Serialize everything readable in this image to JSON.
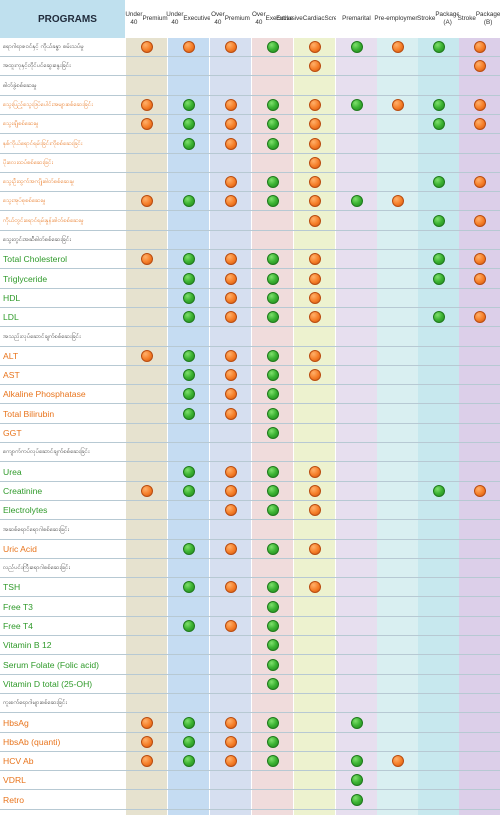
{
  "header": {
    "title": "PROGRAMS",
    "columns": [
      {
        "line1": "Under 40",
        "line2": "Premium"
      },
      {
        "line1": "Under 40",
        "line2": "Executive"
      },
      {
        "line1": "Over 40",
        "line2": "Premium"
      },
      {
        "line1": "Over 40",
        "line2": "Executive"
      },
      {
        "line1": "Exclusive",
        "line2": "Cardiac",
        "line3": "Screening"
      },
      {
        "line1": "Premarital",
        "line2": ""
      },
      {
        "line1": "Pre-",
        "line2": "employment"
      },
      {
        "line1": "Stroke",
        "line2": "Package (A)"
      },
      {
        "line1": "Stroke",
        "line2": "Package (B)"
      }
    ]
  },
  "colors": {
    "green": "#3bb232",
    "orange": "#f57d27",
    "label_green": "#2f9a2a",
    "label_orange": "#e8741c",
    "label_dark": "#333333",
    "column_tints": [
      "#e6e2cf",
      "#c5dcf2",
      "#d6dff0",
      "#f0dcdc",
      "#edf2cf",
      "#e7dfef",
      "#d9eff1",
      "#c7e8ee",
      "#dccfe9"
    ]
  },
  "rows": [
    {
      "label": "ရောဂါရာဇဝင်နှင့် ကိုယ်ခန္ဓာ စမ်းသပ်မှု",
      "script": "my",
      "color": "dark",
      "marks": [
        "o",
        "o",
        "o",
        "g",
        "o",
        "g",
        "o",
        "g",
        "o"
      ]
    },
    {
      "label": "အထူးကုနှင့်တိုင်ပင်ဆွေးနွေးခြင်း",
      "script": "my",
      "color": "dark",
      "marks": [
        "",
        "",
        "",
        "",
        "o",
        "",
        "",
        "",
        "o"
      ]
    },
    {
      "label": "ဓါတ်ခွဲစစ်ဆေးမှု",
      "script": "my",
      "color": "dark",
      "marks": [
        "",
        "",
        "",
        "",
        "",
        "",
        "",
        "",
        ""
      ]
    },
    {
      "label": "သွေးပြည့်သွေးဒြပ်ပေါင်းအများစစ်ဆေးခြင်း",
      "script": "my",
      "color": "orange",
      "marks": [
        "o",
        "g",
        "o",
        "g",
        "o",
        "g",
        "o",
        "g",
        "o"
      ]
    },
    {
      "label": "သွေးချိုစစ်ဆေးမှု",
      "script": "my",
      "color": "orange",
      "marks": [
        "o",
        "g",
        "o",
        "g",
        "o",
        "",
        "",
        "g",
        "o"
      ]
    },
    {
      "label": "နှစ်ကိုယ်ရောင်ရမ်းခြင်းကိုစစ်ဆေးခြင်း",
      "script": "my",
      "color": "orange",
      "marks": [
        "",
        "g",
        "o",
        "g",
        "o",
        "",
        "",
        "",
        ""
      ]
    },
    {
      "label": "ပိုးလေးထပ်စစ်ဆေးခြင်း",
      "script": "my",
      "color": "orange",
      "marks": [
        "",
        "",
        "",
        "",
        "o",
        "",
        "",
        "",
        ""
      ]
    },
    {
      "label": "သွေးဦးထွက်အကျိုးဓါတ်စစ်ဆေးမှု",
      "script": "my",
      "color": "orange",
      "marks": [
        "",
        "",
        "o",
        "g",
        "o",
        "",
        "",
        "g",
        "o"
      ]
    },
    {
      "label": "သွေးအုပ်စုစစ်ဆေးမှု",
      "script": "my",
      "color": "orange",
      "marks": [
        "o",
        "g",
        "o",
        "g",
        "o",
        "g",
        "o",
        "",
        ""
      ]
    },
    {
      "label": "ကိုယ်တွင်းရောင်ရမ်းနှုန်းဓါတ်စစ်ဆေးမှု",
      "script": "my",
      "color": "orange",
      "marks": [
        "",
        "",
        "",
        "",
        "o",
        "",
        "",
        "g",
        "o"
      ]
    },
    {
      "label": "သွေးတွင်းအဆီဓါတ်စစ်ဆေးခြင်း",
      "script": "my",
      "color": "dark",
      "marks": [
        "",
        "",
        "",
        "",
        "",
        "",
        "",
        "",
        ""
      ]
    },
    {
      "label": "Total Cholesterol",
      "script": "latin",
      "color": "green",
      "marks": [
        "o",
        "g",
        "o",
        "g",
        "o",
        "",
        "",
        "g",
        "o"
      ]
    },
    {
      "label": "Triglyceride",
      "script": "latin",
      "color": "green",
      "marks": [
        "",
        "g",
        "o",
        "g",
        "o",
        "",
        "",
        "g",
        "o"
      ]
    },
    {
      "label": "HDL",
      "script": "latin",
      "color": "green",
      "marks": [
        "",
        "g",
        "o",
        "g",
        "o",
        "",
        "",
        "",
        ""
      ]
    },
    {
      "label": "LDL",
      "script": "latin",
      "color": "green",
      "marks": [
        "",
        "g",
        "o",
        "g",
        "o",
        "",
        "",
        "g",
        "o"
      ]
    },
    {
      "label": "အသည်းလုပ်ဆောင်ချက်စစ်ဆေးခြင်း",
      "script": "my",
      "color": "dark",
      "marks": [
        "",
        "",
        "",
        "",
        "",
        "",
        "",
        "",
        ""
      ]
    },
    {
      "label": "ALT",
      "script": "latin",
      "color": "orange",
      "marks": [
        "o",
        "g",
        "o",
        "g",
        "o",
        "",
        "",
        "",
        ""
      ]
    },
    {
      "label": "AST",
      "script": "latin",
      "color": "orange",
      "marks": [
        "",
        "g",
        "o",
        "g",
        "o",
        "",
        "",
        "",
        ""
      ]
    },
    {
      "label": "Alkaline Phosphatase",
      "script": "latin",
      "color": "orange",
      "marks": [
        "",
        "g",
        "o",
        "g",
        "",
        "",
        "",
        "",
        ""
      ]
    },
    {
      "label": "Total Bilirubin",
      "script": "latin",
      "color": "orange",
      "marks": [
        "",
        "g",
        "o",
        "g",
        "",
        "",
        "",
        "",
        ""
      ]
    },
    {
      "label": "GGT",
      "script": "latin",
      "color": "orange",
      "marks": [
        "",
        "",
        "",
        "g",
        "",
        "",
        "",
        "",
        ""
      ]
    },
    {
      "label": "ကျောက်ကပ်လုပ်ဆောင်ချက်စစ်ဆေးခြင်း",
      "script": "my",
      "color": "dark",
      "marks": [
        "",
        "",
        "",
        "",
        "",
        "",
        "",
        "",
        ""
      ]
    },
    {
      "label": "Urea",
      "script": "latin",
      "color": "green",
      "marks": [
        "",
        "g",
        "o",
        "g",
        "o",
        "",
        "",
        "",
        ""
      ]
    },
    {
      "label": "Creatinine",
      "script": "latin",
      "color": "green",
      "marks": [
        "o",
        "g",
        "o",
        "g",
        "o",
        "",
        "",
        "g",
        "o"
      ]
    },
    {
      "label": "Electrolytes",
      "script": "latin",
      "color": "green",
      "marks": [
        "",
        "",
        "o",
        "g",
        "o",
        "",
        "",
        "",
        ""
      ]
    },
    {
      "label": "အဆစ်ရောင်ရောဂါစစ်ဆေးခြင်း",
      "script": "my",
      "color": "dark",
      "marks": [
        "",
        "",
        "",
        "",
        "",
        "",
        "",
        "",
        ""
      ]
    },
    {
      "label": "Uric Acid",
      "script": "latin",
      "color": "orange",
      "marks": [
        "",
        "g",
        "o",
        "g",
        "o",
        "",
        "",
        "",
        ""
      ]
    },
    {
      "label": "လည်ပင်းကြီးရောဂါစစ်ဆေးခြင်း",
      "script": "my",
      "color": "dark",
      "marks": [
        "",
        "",
        "",
        "",
        "",
        "",
        "",
        "",
        ""
      ]
    },
    {
      "label": "TSH",
      "script": "latin",
      "color": "green",
      "marks": [
        "",
        "g",
        "o",
        "g",
        "o",
        "",
        "",
        "",
        ""
      ]
    },
    {
      "label": "Free T3",
      "script": "latin",
      "color": "green",
      "marks": [
        "",
        "",
        "",
        "g",
        "",
        "",
        "",
        "",
        ""
      ]
    },
    {
      "label": "Free T4",
      "script": "latin",
      "color": "green",
      "marks": [
        "",
        "g",
        "o",
        "g",
        "",
        "",
        "",
        "",
        ""
      ]
    },
    {
      "label": "Vitamin B 12",
      "script": "latin",
      "color": "green",
      "marks": [
        "",
        "",
        "",
        "g",
        "",
        "",
        "",
        "",
        ""
      ]
    },
    {
      "label": "Serum Folate (Folic acid)",
      "script": "latin",
      "color": "green",
      "marks": [
        "",
        "",
        "",
        "g",
        "",
        "",
        "",
        "",
        ""
      ]
    },
    {
      "label": "Vitamin D total (25-OH)",
      "script": "latin",
      "color": "green",
      "marks": [
        "",
        "",
        "",
        "g",
        "",
        "",
        "",
        "",
        ""
      ]
    },
    {
      "label": "ကူးစက်ရောဂါများစစ်ဆေးခြင်း",
      "script": "my",
      "color": "dark",
      "marks": [
        "",
        "",
        "",
        "",
        "",
        "",
        "",
        "",
        ""
      ]
    },
    {
      "label": "HbsAg",
      "script": "latin",
      "color": "orange",
      "marks": [
        "o",
        "g",
        "o",
        "g",
        "",
        "g",
        "",
        "",
        ""
      ]
    },
    {
      "label": "HbsAb (quanti)",
      "script": "latin",
      "color": "orange",
      "marks": [
        "o",
        "g",
        "o",
        "g",
        "",
        "",
        "",
        "",
        ""
      ]
    },
    {
      "label": "HCV Ab",
      "script": "latin",
      "color": "orange",
      "marks": [
        "o",
        "g",
        "o",
        "g",
        "",
        "g",
        "o",
        "",
        ""
      ]
    },
    {
      "label": "VDRL",
      "script": "latin",
      "color": "orange",
      "marks": [
        "",
        "",
        "",
        "",
        "",
        "g",
        "",
        "",
        ""
      ]
    },
    {
      "label": "Retro",
      "script": "latin",
      "color": "orange",
      "marks": [
        "",
        "",
        "",
        "",
        "",
        "g",
        "",
        "",
        ""
      ]
    }
  ]
}
